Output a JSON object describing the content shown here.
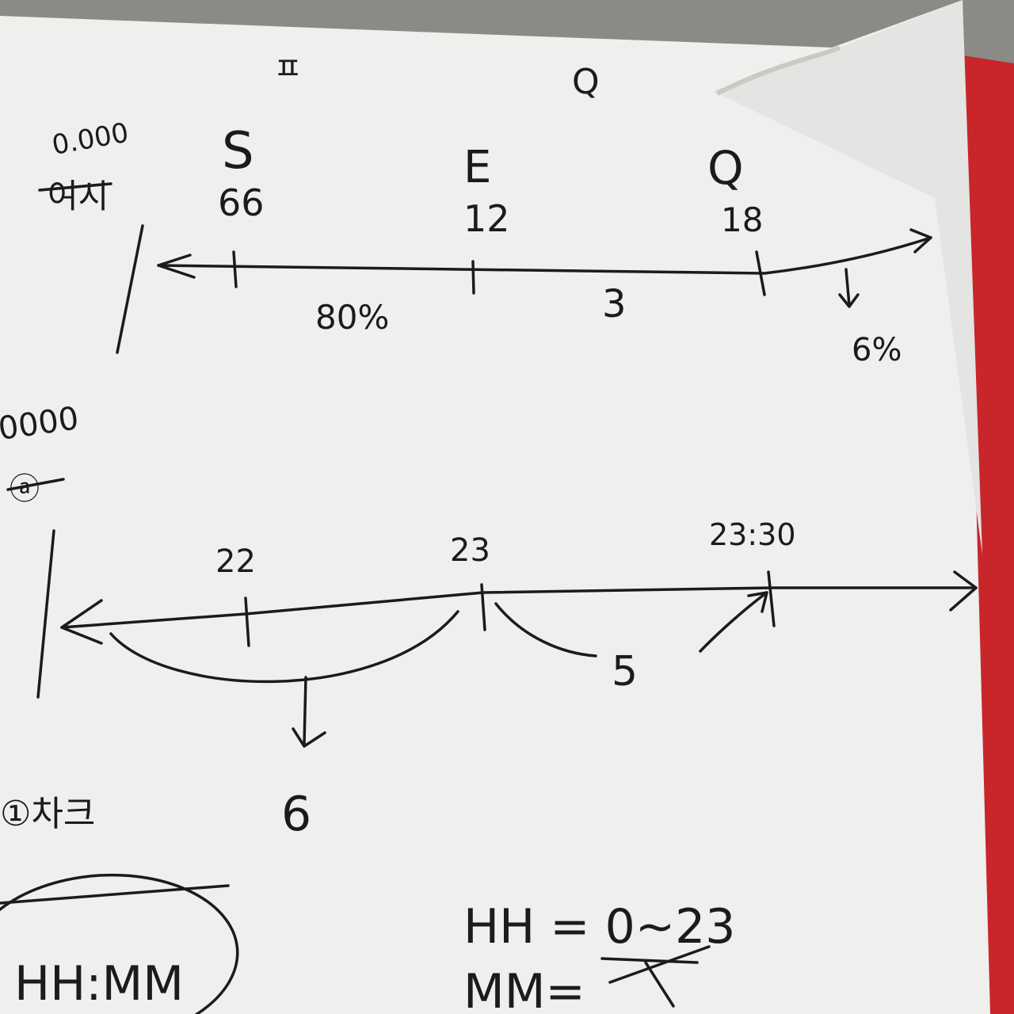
{
  "colors": {
    "paper": "#efefed",
    "paper_shadow": "#c9c9c6",
    "folded_corner": "#e4e4e2",
    "ink": "#1b1b1b",
    "red_cover": "#c8262b",
    "background": "#8a8a86"
  },
  "top_diagram": {
    "corner_note_number": "0.000",
    "corner_note_word": "여시",
    "header_mark_left": "ㅍ",
    "header_mark_right": "Q",
    "points": [
      {
        "letter": "S",
        "value": "66"
      },
      {
        "letter": "E",
        "value": "12"
      },
      {
        "letter": "Q",
        "value": "18"
      }
    ],
    "gap_labels": [
      "80%",
      "3"
    ],
    "arrow_result": "6%"
  },
  "bottom_diagram": {
    "corner_note_number": "0000",
    "corner_note_word": "ⓐ",
    "ticks": [
      "22",
      "23",
      "23:30"
    ],
    "span_results": [
      "6",
      "5"
    ]
  },
  "notes": {
    "left_word": "①차크",
    "format_circle": "HH:MM",
    "hh_range": "HH = 0~23",
    "mm_label": "MM="
  }
}
